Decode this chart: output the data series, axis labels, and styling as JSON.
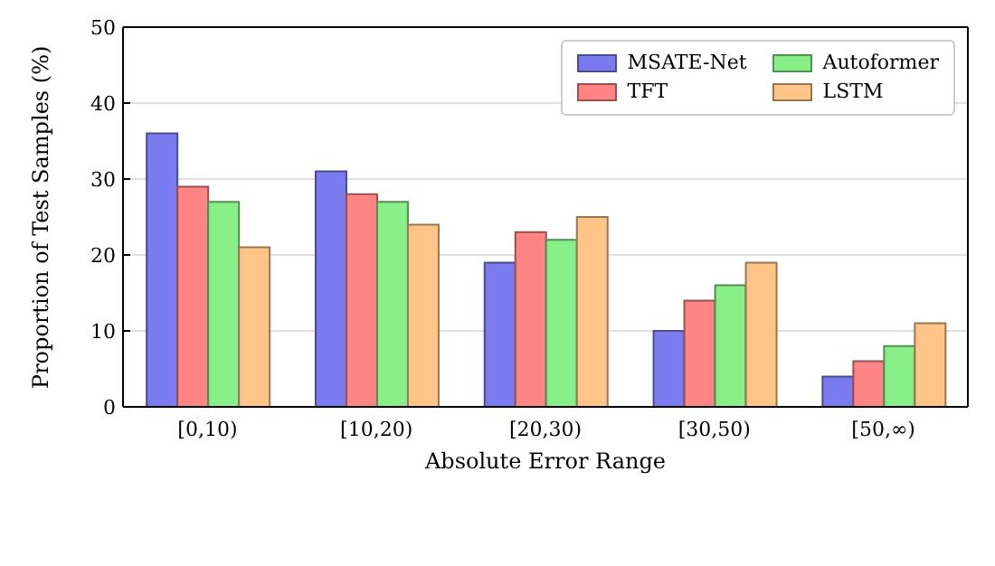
{
  "chart_data": {
    "type": "bar",
    "xlabel": "Absolute Error Range",
    "ylabel": "Proportion of Test Samples (%)",
    "categories": [
      "[0,10)",
      "[10,20)",
      "[20,30)",
      "[30,50)",
      "[50,∞)"
    ],
    "series": [
      {
        "name": "MSATE-Net",
        "color": "#7b7bf0",
        "values": [
          36,
          31,
          19,
          10,
          4
        ]
      },
      {
        "name": "TFT",
        "color": "#ff8484",
        "values": [
          29,
          28,
          23,
          14,
          6
        ]
      },
      {
        "name": "Autoformer",
        "color": "#88ee88",
        "values": [
          27,
          27,
          22,
          16,
          8
        ]
      },
      {
        "name": "LSTM",
        "color": "#ffc488",
        "values": [
          21,
          24,
          25,
          19,
          11
        ]
      }
    ],
    "ylim": [
      0,
      50
    ],
    "yticks": [
      0,
      10,
      20,
      30,
      40,
      50
    ],
    "grid": "y",
    "legend": "top right"
  }
}
